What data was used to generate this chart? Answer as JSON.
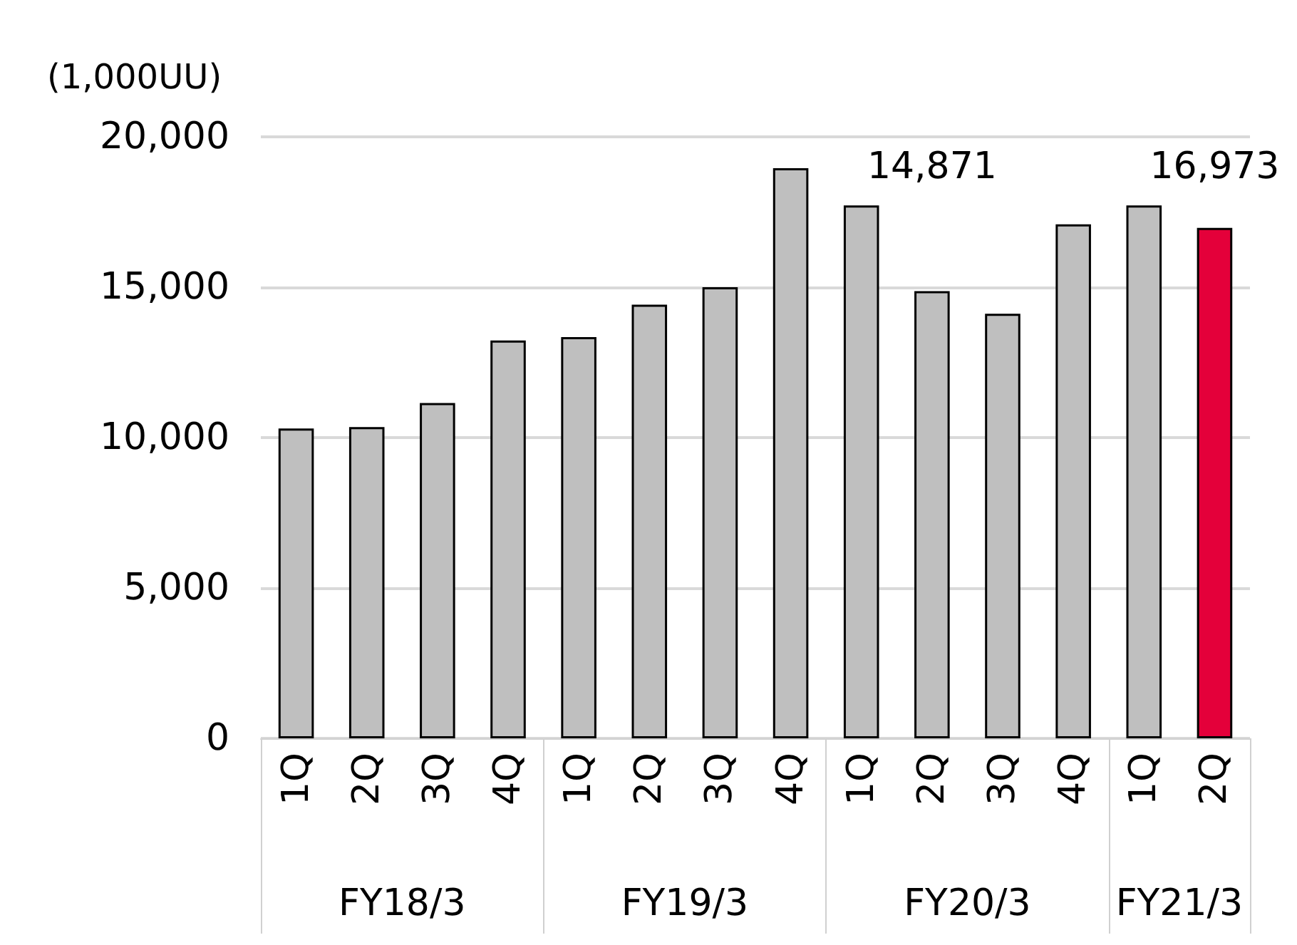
{
  "chart_data": {
    "type": "bar",
    "ylabel": "(1,000UU)",
    "categories": [
      "1Q",
      "2Q",
      "3Q",
      "4Q",
      "1Q",
      "2Q",
      "3Q",
      "4Q",
      "1Q",
      "2Q",
      "3Q",
      "4Q",
      "1Q",
      "2Q"
    ],
    "values": [
      10300,
      10350,
      11150,
      13230,
      13340,
      14420,
      15000,
      18960,
      17720,
      14871,
      14120,
      17090,
      17720,
      16973
    ],
    "colors": [
      "#bfbfbf",
      "#bfbfbf",
      "#bfbfbf",
      "#bfbfbf",
      "#bfbfbf",
      "#bfbfbf",
      "#bfbfbf",
      "#bfbfbf",
      "#bfbfbf",
      "#bfbfbf",
      "#bfbfbf",
      "#bfbfbf",
      "#bfbfbf",
      "#e4003a"
    ],
    "value_labels": [
      null,
      null,
      null,
      null,
      null,
      null,
      null,
      null,
      null,
      "14,871",
      null,
      null,
      null,
      "16,973"
    ],
    "annotations": [
      "FY18/3",
      "FY19/3",
      "FY20/3",
      "FY21/3"
    ],
    "ylim": [
      0,
      20000
    ],
    "yticks": [
      0,
      {
        "value": 5000,
        "label": "5,000"
      },
      {
        "value": 10000,
        "label": "10,000"
      },
      {
        "value": 15000,
        "label": "15,000"
      },
      {
        "value": 20000,
        "label": "20,000"
      }
    ],
    "grid": "y"
  }
}
